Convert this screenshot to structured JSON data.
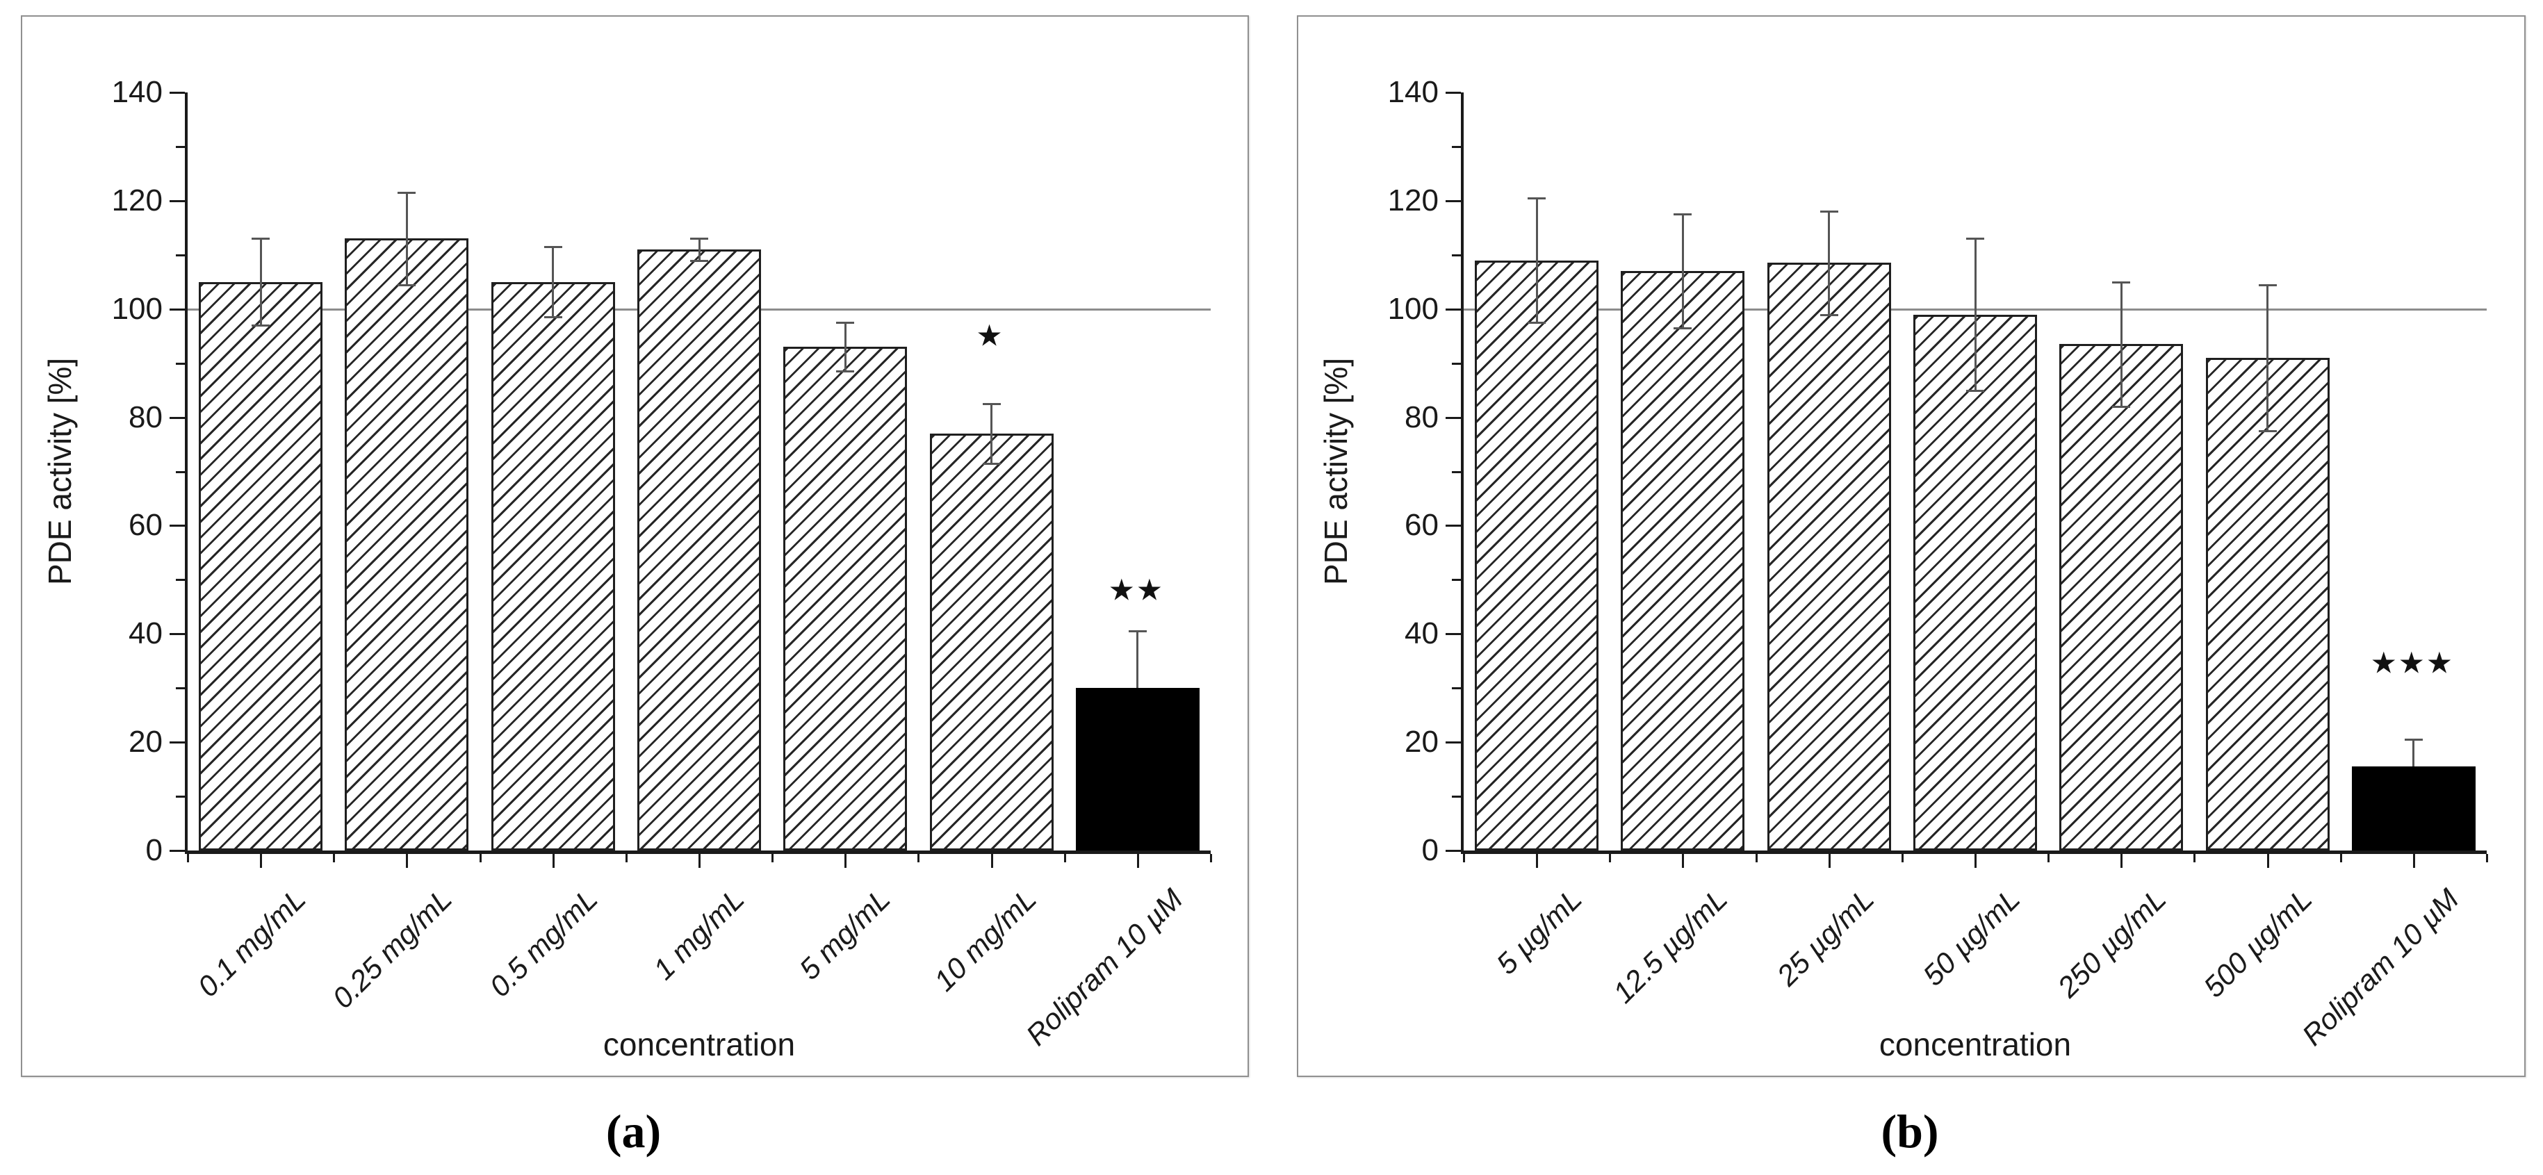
{
  "figure": {
    "type": "scientific-figure",
    "description": "Two-panel bar chart figure of PDE activity versus concentration with Rolipram control",
    "background_color": "#ffffff",
    "panel_border_color": "#909090",
    "text_color": "#1a1a1a",
    "reference_line_color": "#8c8c8c",
    "error_bar_color": "#555555",
    "bar_hatch_style": "diagonal-forward-slash",
    "control_bar_color": "#000000"
  },
  "chart_data": [
    {
      "type": "bar",
      "panel": "a",
      "caption": "(a)",
      "xlabel": "concentration",
      "ylabel": "PDE activity [%]",
      "ylim": [
        0,
        140
      ],
      "ytick_step": 20,
      "yticks": [
        0,
        20,
        40,
        60,
        80,
        100,
        120,
        140
      ],
      "grid": "off",
      "legend": "none",
      "reference_line_y": 100,
      "categories": [
        "0.1 mg/mL",
        "0.25 mg/mL",
        "0.5 mg/mL",
        "1 mg/mL",
        "5 mg/mL",
        "10 mg/mL",
        "Rolipram 10 µM"
      ],
      "values": [
        105,
        113,
        105,
        111,
        93,
        77,
        30
      ],
      "errors": [
        8,
        8.5,
        6.5,
        2,
        4.5,
        5.5,
        10.5
      ],
      "bar_fill": [
        "hatch",
        "hatch",
        "hatch",
        "hatch",
        "hatch",
        "hatch",
        "black"
      ],
      "significance": [
        {
          "index": 5,
          "symbol": "*",
          "y_value": 95
        },
        {
          "index": 6,
          "symbol": "**",
          "y_value": 48
        }
      ]
    },
    {
      "type": "bar",
      "panel": "b",
      "caption": "(b)",
      "xlabel": "concentration",
      "ylabel": "PDE activity [%]",
      "ylim": [
        0,
        140
      ],
      "ytick_step": 20,
      "yticks": [
        0,
        20,
        40,
        60,
        80,
        100,
        120,
        140
      ],
      "grid": "off",
      "legend": "none",
      "reference_line_y": 100,
      "categories": [
        "5 µg/mL",
        "12.5 µg/mL",
        "25 µg/mL",
        "50 µg/mL",
        "250 µg/mL",
        "500 µg/mL",
        "Rolipram 10 µM"
      ],
      "values": [
        109,
        107,
        108.5,
        99,
        93.5,
        91,
        15.5
      ],
      "errors": [
        11.5,
        10.5,
        9.5,
        14,
        11.5,
        13.5,
        5
      ],
      "bar_fill": [
        "hatch",
        "hatch",
        "hatch",
        "hatch",
        "hatch",
        "hatch",
        "black"
      ],
      "significance": [
        {
          "index": 6,
          "symbol": "***",
          "y_value": 34.5
        }
      ]
    }
  ]
}
